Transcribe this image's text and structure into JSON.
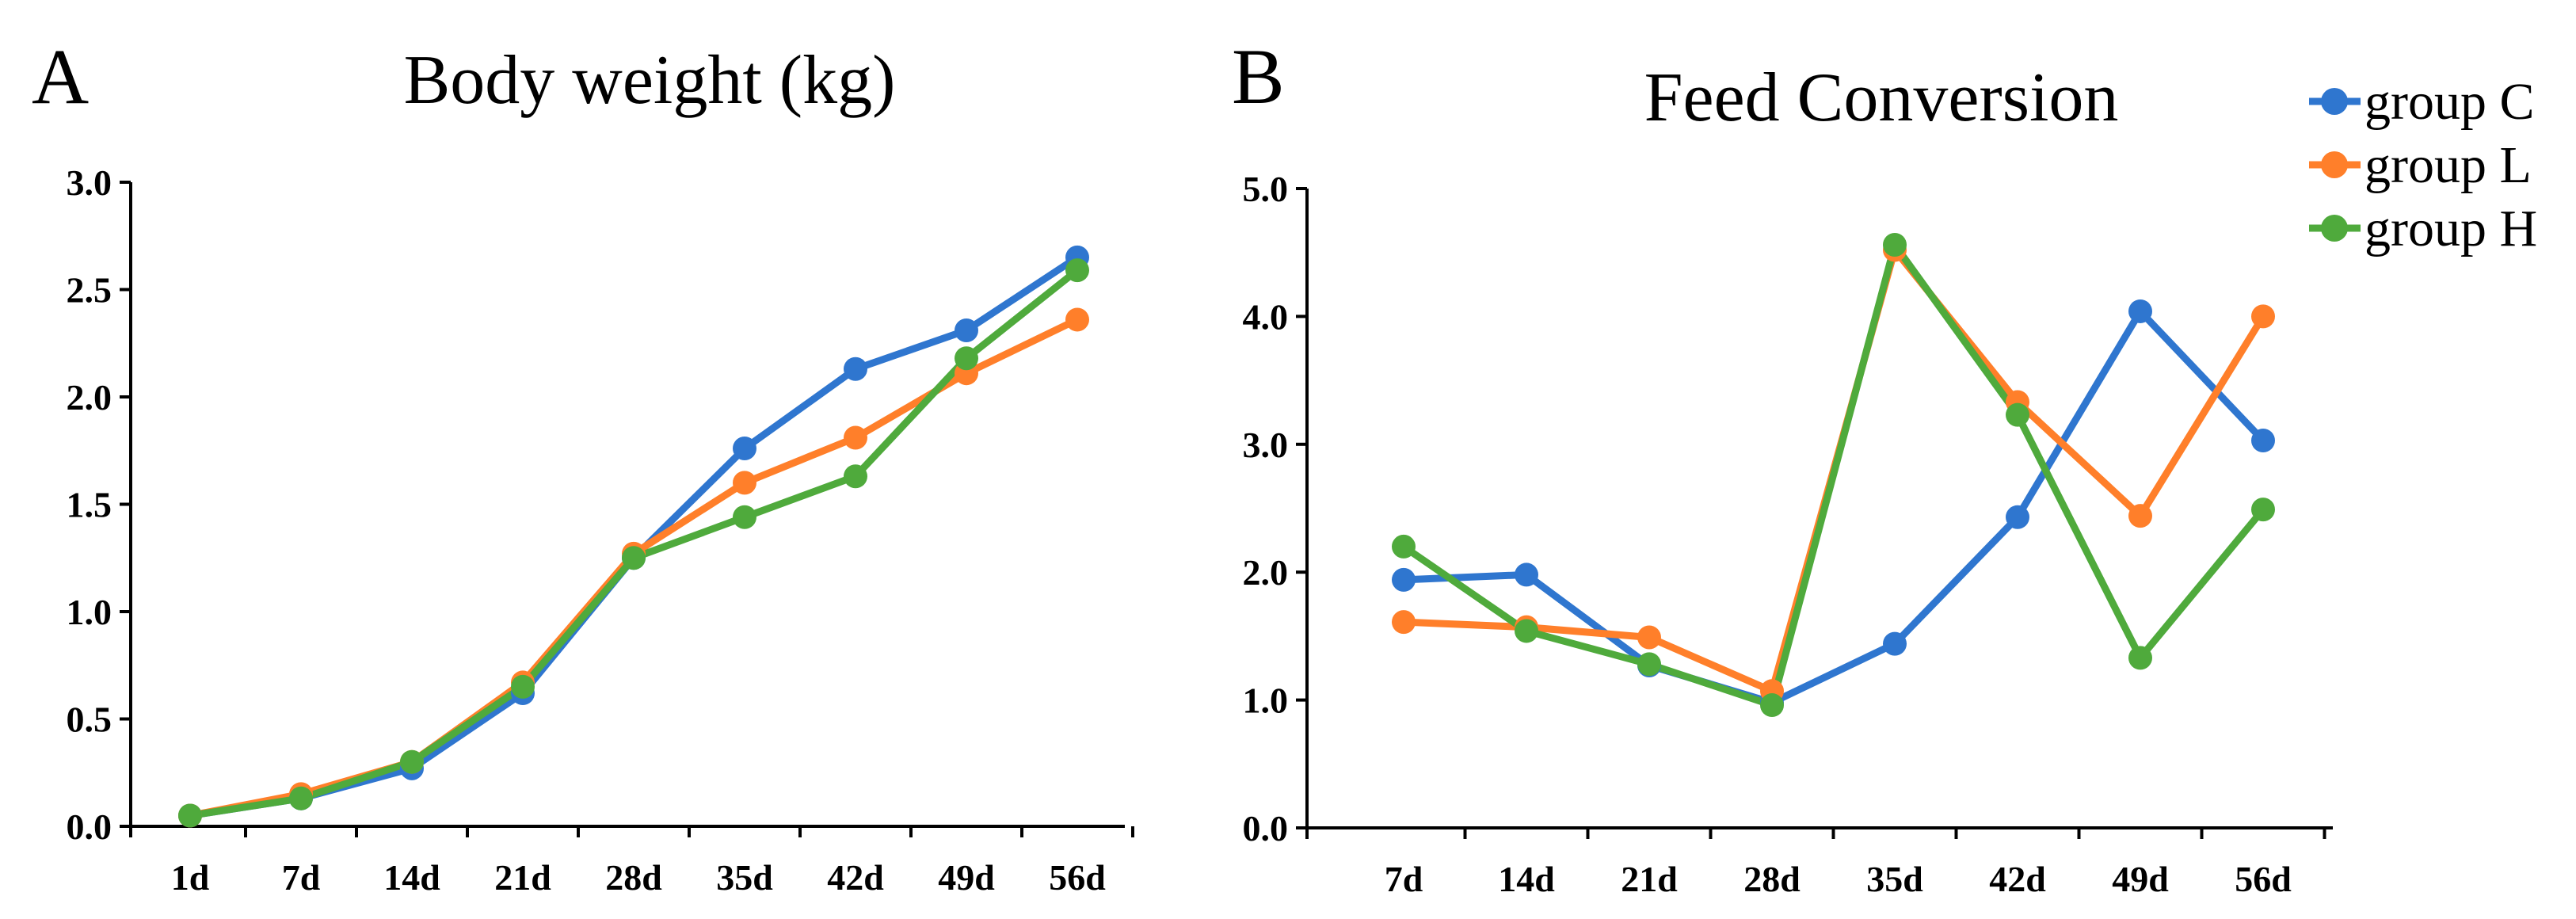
{
  "colors": {
    "group_c": "#2F76CF",
    "group_l": "#FF7F2A",
    "group_h": "#4FAA3C",
    "axis": "#000000"
  },
  "legend": [
    "group C",
    "group L",
    "group H"
  ],
  "chart_data": [
    {
      "panel_letter": "A",
      "type": "line",
      "title": "Body weight (kg)",
      "categories": [
        "1d",
        "7d",
        "14d",
        "21d",
        "28d",
        "35d",
        "42d",
        "49d",
        "56d"
      ],
      "ylim": [
        0,
        3.0
      ],
      "yticks": [
        "0.0",
        "0.5",
        "1.0",
        "1.5",
        "2.0",
        "2.5",
        "3.0"
      ],
      "series": [
        {
          "name": "group C",
          "values": [
            0.05,
            0.13,
            0.27,
            0.62,
            1.25,
            1.76,
            2.13,
            2.31,
            2.65
          ]
        },
        {
          "name": "group L",
          "values": [
            0.05,
            0.15,
            0.3,
            0.67,
            1.27,
            1.6,
            1.81,
            2.11,
            2.36
          ]
        },
        {
          "name": "group H",
          "values": [
            0.05,
            0.13,
            0.3,
            0.65,
            1.25,
            1.44,
            1.63,
            2.18,
            2.59
          ]
        }
      ]
    },
    {
      "panel_letter": "B",
      "type": "line",
      "title": "Feed Conversion",
      "categories": [
        "7d",
        "14d",
        "21d",
        "28d",
        "35d",
        "42d",
        "49d",
        "56d"
      ],
      "ylim": [
        0,
        5.0
      ],
      "yticks": [
        "0.0",
        "1.0",
        "2.0",
        "3.0",
        "4.0",
        "5.0"
      ],
      "series": [
        {
          "name": "group C",
          "values": [
            1.94,
            1.98,
            1.27,
            0.98,
            1.44,
            2.43,
            4.04,
            3.03
          ]
        },
        {
          "name": "group L",
          "values": [
            1.61,
            1.57,
            1.49,
            1.07,
            4.52,
            3.33,
            2.44,
            4.0
          ]
        },
        {
          "name": "group H",
          "values": [
            2.2,
            1.54,
            1.28,
            0.96,
            4.56,
            3.23,
            1.33,
            2.49
          ]
        }
      ]
    }
  ]
}
